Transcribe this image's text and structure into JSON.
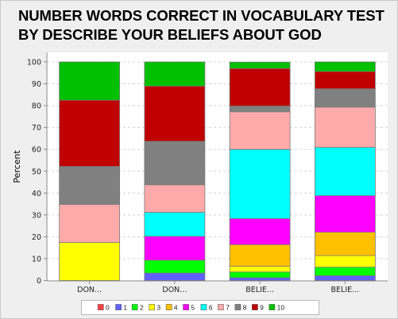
{
  "title_line1": "NUMBER WORDS CORRECT IN VOCABULARY TEST",
  "title_line2": "BY DESCRIBE YOUR BELIEFS ABOUT GOD",
  "chart_data": {
    "type": "bar",
    "stacked": true,
    "title": "NUMBER WORDS CORRECT IN VOCABULARY TEST BY DESCRIBE YOUR BELIEFS ABOUT GOD",
    "xlabel": "",
    "ylabel": "Percent",
    "ylim": [
      0,
      100
    ],
    "yticks": [
      0,
      10,
      20,
      30,
      40,
      50,
      60,
      70,
      80,
      90,
      100
    ],
    "grid": true,
    "legend_position": "bottom",
    "categories": [
      "DON...",
      "DON...",
      "BELIE...",
      "BELIE..."
    ],
    "series": [
      {
        "name": "0",
        "color": "#ff4040",
        "values": [
          0,
          0,
          0,
          0
        ]
      },
      {
        "name": "1",
        "color": "#6060ff",
        "values": [
          0,
          3.4,
          1.3,
          2.2
        ]
      },
      {
        "name": "2",
        "color": "#00ff00",
        "values": [
          0,
          5.9,
          2.6,
          3.9
        ]
      },
      {
        "name": "3",
        "color": "#ffff00",
        "values": [
          17.4,
          0,
          2.6,
          5.3
        ]
      },
      {
        "name": "4",
        "color": "#ffc000",
        "values": [
          0,
          0,
          9.9,
          10.7
        ]
      },
      {
        "name": "5",
        "color": "#ff00ff",
        "values": [
          0,
          10.9,
          11.9,
          16.7
        ]
      },
      {
        "name": "6",
        "color": "#00ffff",
        "values": [
          0,
          11.0,
          31.7,
          22.1
        ]
      },
      {
        "name": "7",
        "color": "#ffaaaa",
        "values": [
          17.4,
          12.6,
          17.2,
          18.4
        ]
      },
      {
        "name": "8",
        "color": "#808080",
        "values": [
          17.4,
          19.9,
          2.6,
          8.4
        ]
      },
      {
        "name": "9",
        "color": "#c00000",
        "values": [
          30.3,
          25.2,
          17.2,
          7.9
        ]
      },
      {
        "name": "10",
        "color": "#00c000",
        "values": [
          17.5,
          11.1,
          2.9,
          4.4
        ]
      }
    ]
  }
}
